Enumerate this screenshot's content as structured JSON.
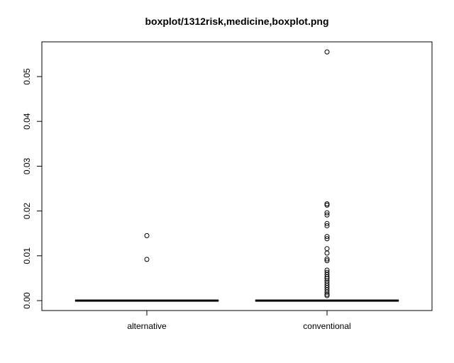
{
  "chart_data": {
    "type": "boxplot",
    "title": "boxplot/1312risk,medicine,boxplot.png",
    "xlabel": "",
    "ylabel": "",
    "ylim": [
      -0.0022,
      0.0577
    ],
    "yticks": [
      0.0,
      0.01,
      0.02,
      0.03,
      0.04,
      0.05
    ],
    "ytick_labels": [
      "0.00",
      "0.01",
      "0.02",
      "0.03",
      "0.04",
      "0.05"
    ],
    "grid": false,
    "categories": [
      "alternative",
      "conventional"
    ],
    "boxes": [
      {
        "name": "alternative",
        "min": 0.0,
        "q1": 0.0,
        "median": 0.0,
        "q3": 0.0,
        "max": 0.0,
        "outliers": [
          0.0145,
          0.0092
        ]
      },
      {
        "name": "conventional",
        "min": 0.0,
        "q1": 0.0,
        "median": 0.0,
        "q3": 0.0,
        "max": 0.0,
        "outliers": [
          0.0555,
          0.0216,
          0.0213,
          0.0196,
          0.0191,
          0.0172,
          0.0167,
          0.0143,
          0.0138,
          0.0116,
          0.0106,
          0.0093,
          0.0089,
          0.0068,
          0.0063,
          0.0058,
          0.0053,
          0.0049,
          0.0044,
          0.0039,
          0.0034,
          0.0029,
          0.0024,
          0.0019,
          0.0014,
          0.0011
        ]
      }
    ]
  }
}
